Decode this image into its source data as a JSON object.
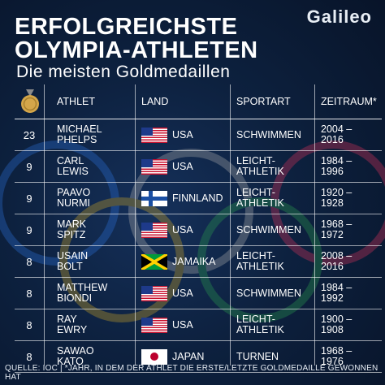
{
  "title_line1": "Erfolgreichste",
  "title_line2": "Olympia-Athleten",
  "subtitle": "Die meisten Goldmedaillen",
  "logo": "Galileo",
  "headers": {
    "athlet": "Athlet",
    "land": "Land",
    "sportart": "Sportart",
    "zeitraum": "Zeitraum*"
  },
  "rows": [
    {
      "rank": "23",
      "first": "Michael",
      "last": "Phelps",
      "land": "USA",
      "flag": "usa",
      "sport1": "Schwimmen",
      "sport2": "",
      "z1": "2004 –",
      "z2": "2016"
    },
    {
      "rank": "9",
      "first": "Carl",
      "last": "Lewis",
      "land": "USA",
      "flag": "usa",
      "sport1": "Leicht-",
      "sport2": "athletik",
      "z1": "1984 –",
      "z2": "1996"
    },
    {
      "rank": "9",
      "first": "Paavo",
      "last": "Nurmi",
      "land": "Finnland",
      "flag": "fin",
      "sport1": "Leicht-",
      "sport2": "athletik",
      "z1": "1920 –",
      "z2": "1928"
    },
    {
      "rank": "9",
      "first": "Mark",
      "last": "Spitz",
      "land": "USA",
      "flag": "usa",
      "sport1": "Schwimmen",
      "sport2": "",
      "z1": "1968 –",
      "z2": "1972"
    },
    {
      "rank": "8",
      "first": "Usain",
      "last": "Bolt",
      "land": "Jamaika",
      "flag": "jam",
      "sport1": "Leicht-",
      "sport2": "athletik",
      "z1": "2008 –",
      "z2": "2016"
    },
    {
      "rank": "8",
      "first": "Matthew",
      "last": "Biondi",
      "land": "USA",
      "flag": "usa",
      "sport1": "Schwimmen",
      "sport2": "",
      "z1": "1984 –",
      "z2": "1992"
    },
    {
      "rank": "8",
      "first": "Ray",
      "last": "Ewry",
      "land": "USA",
      "flag": "usa",
      "sport1": "Leicht-",
      "sport2": "athletik",
      "z1": "1900 –",
      "z2": "1908"
    },
    {
      "rank": "8",
      "first": "Sawao",
      "last": "Kato",
      "land": "Japan",
      "flag": "jpn",
      "sport1": "Turnen",
      "sport2": "",
      "z1": "1968 –",
      "z2": "1976"
    }
  ],
  "footer": "Quelle: IOC | *Jahr, in dem der Athlet die erste/letzte Goldmedaille gewonnen hat",
  "icons": {
    "medal": "gold-medal-icon"
  },
  "colors": {
    "background": "#0b1b33",
    "text": "#ffffff",
    "gold": "#d4a64a"
  }
}
